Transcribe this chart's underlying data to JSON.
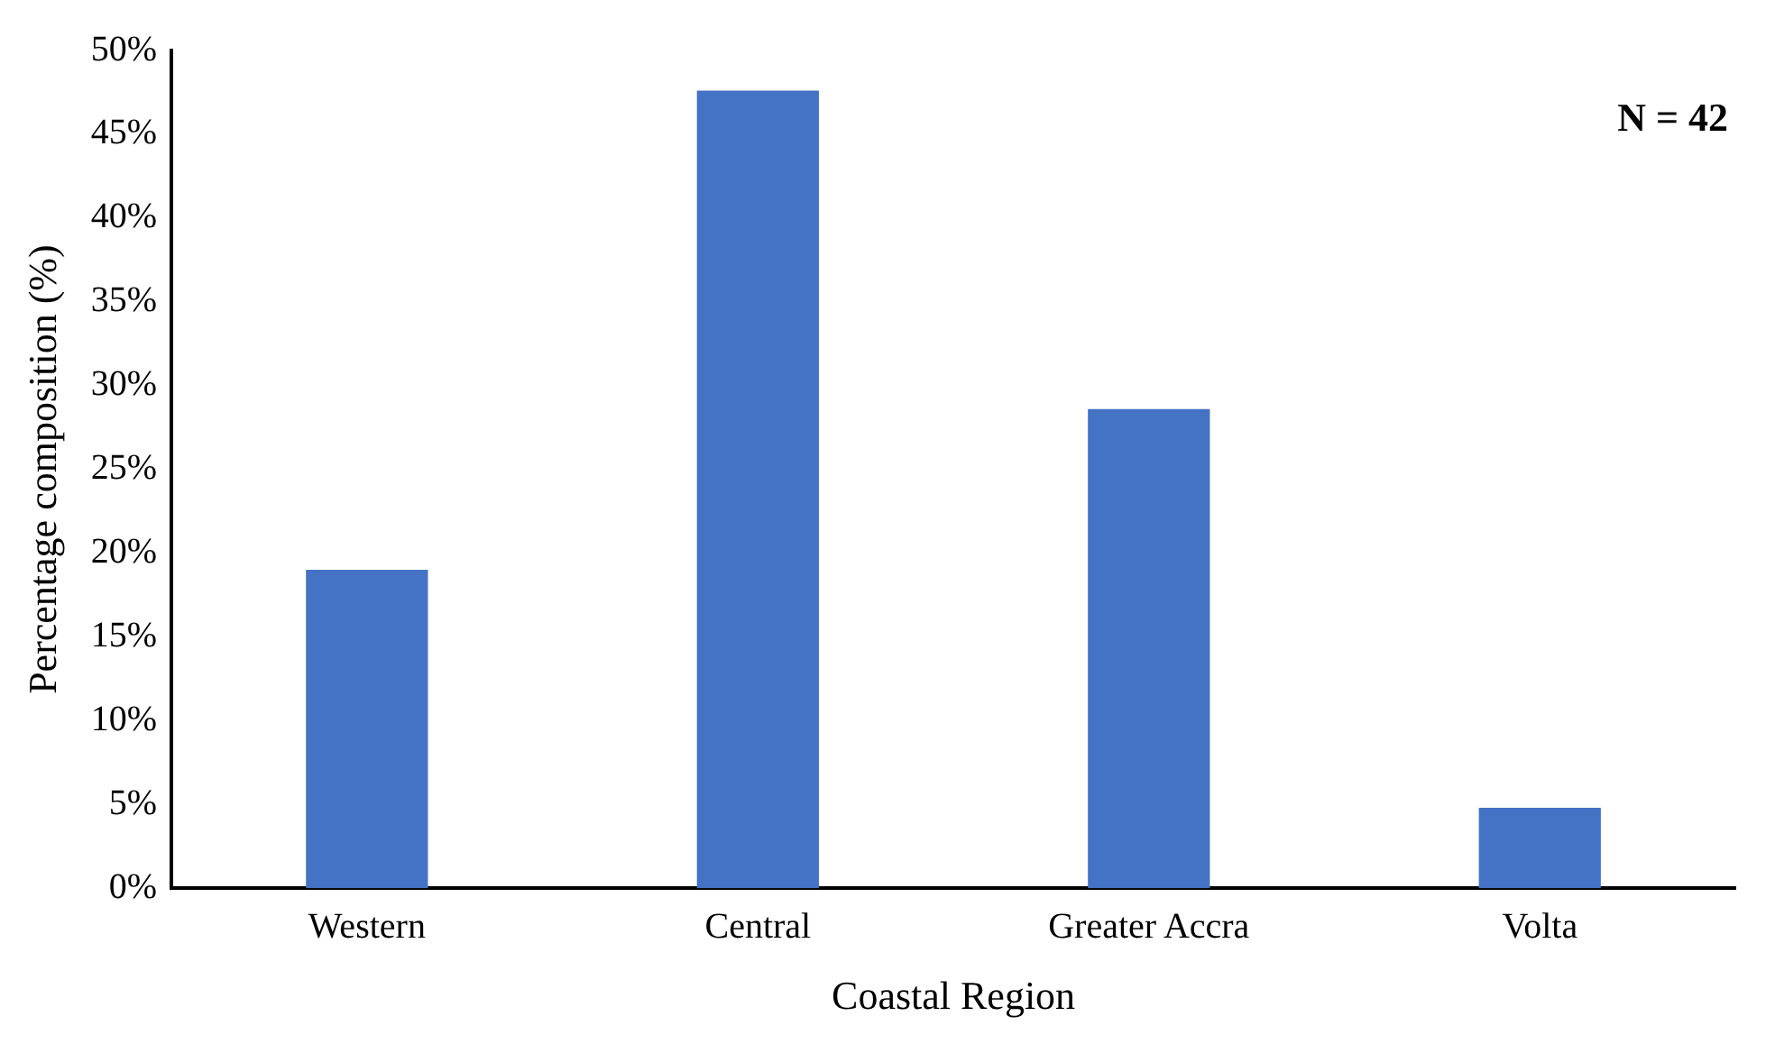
{
  "chart_data": {
    "type": "bar",
    "xlabel": "Coastal Region",
    "ylabel": "Percentage composition (%)",
    "categories": [
      "Western",
      "Central",
      "Greater Accra",
      "Volta"
    ],
    "values": [
      19.0,
      47.6,
      28.6,
      4.8
    ],
    "color": "#4472c4",
    "ylim": [
      0,
      50
    ],
    "yticks": [
      {
        "value": 0,
        "label": "0%"
      },
      {
        "value": 5,
        "label": "5%"
      },
      {
        "value": 10,
        "label": "10%"
      },
      {
        "value": 15,
        "label": "15%"
      },
      {
        "value": 20,
        "label": "20%"
      },
      {
        "value": 25,
        "label": "25%"
      },
      {
        "value": 30,
        "label": "30%"
      },
      {
        "value": 35,
        "label": "35%"
      },
      {
        "value": 40,
        "label": "40%"
      },
      {
        "value": 45,
        "label": "45%"
      },
      {
        "value": 50,
        "label": "50%"
      }
    ],
    "grid": false,
    "legend": false,
    "annotations": [
      "N = 42"
    ]
  }
}
